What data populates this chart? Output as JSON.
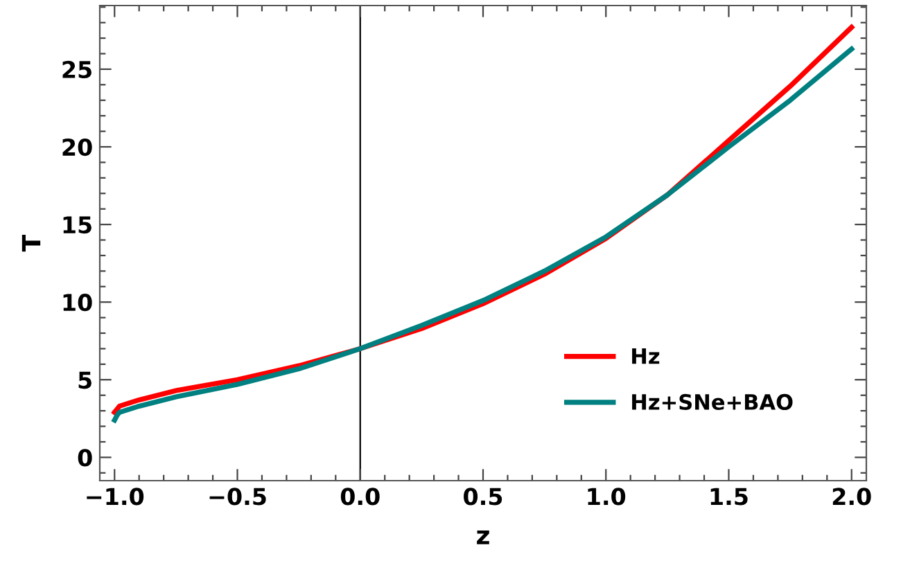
{
  "chart_data": {
    "type": "line",
    "xlabel": "z",
    "ylabel": "T",
    "x": [
      -1.0,
      -0.99,
      -0.98,
      -0.9,
      -0.75,
      -0.5,
      -0.25,
      0.0,
      0.25,
      0.5,
      0.75,
      1.0,
      1.25,
      1.5,
      1.75,
      2.0
    ],
    "series": [
      {
        "name": "Hz",
        "color": "#ff0000",
        "values": [
          2.9,
          3.1,
          3.3,
          3.7,
          4.3,
          5.0,
          5.9,
          7.0,
          8.3,
          9.9,
          11.8,
          14.1,
          16.9,
          20.4,
          23.9,
          27.7
        ]
      },
      {
        "name": "Hz+SNe+BAO",
        "color": "#008080",
        "values": [
          2.4,
          2.7,
          2.9,
          3.3,
          3.9,
          4.7,
          5.7,
          7.0,
          8.5,
          10.1,
          12.0,
          14.2,
          16.9,
          20.0,
          23.0,
          26.3
        ]
      }
    ],
    "xlim": [
      -1.06,
      2.06
    ],
    "ylim": [
      -1.5,
      29.1
    ],
    "xticks": [
      {
        "value": -1.0,
        "label": "−1.0"
      },
      {
        "value": -0.5,
        "label": "−0.5"
      },
      {
        "value": 0.0,
        "label": "0.0"
      },
      {
        "value": 0.5,
        "label": "0.5"
      },
      {
        "value": 1.0,
        "label": "1.0"
      },
      {
        "value": 1.5,
        "label": "1.5"
      },
      {
        "value": 2.0,
        "label": "2.0"
      }
    ],
    "yticks": [
      0,
      5,
      10,
      15,
      20,
      25
    ],
    "ref_lines": [
      {
        "axis": "x",
        "value": 0,
        "color": "#000000"
      }
    ],
    "grid": false,
    "legend": "bottom right",
    "marker": "none",
    "line_style": "solid"
  }
}
